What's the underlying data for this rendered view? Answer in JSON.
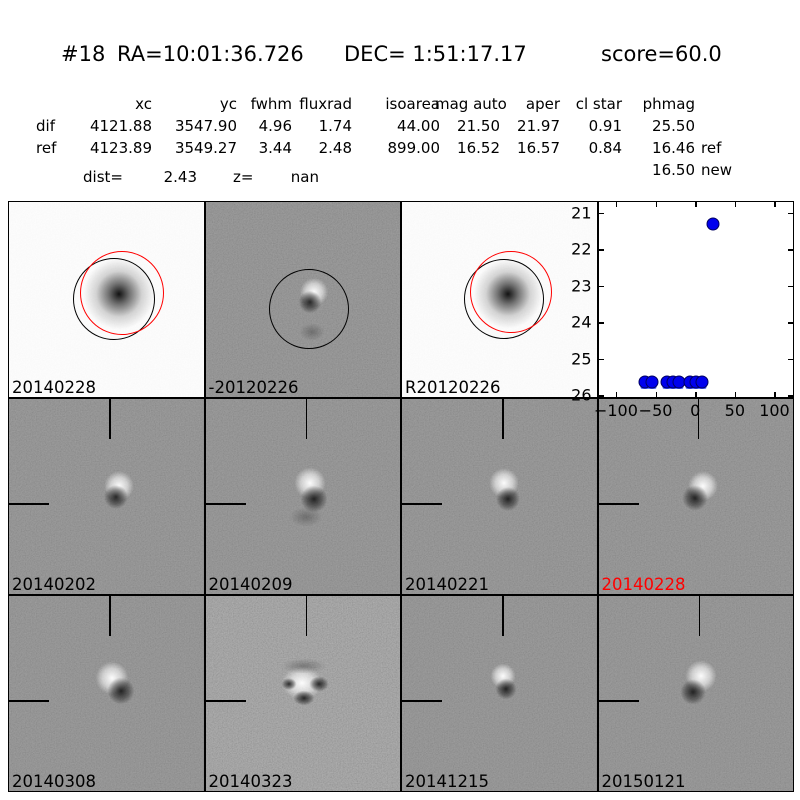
{
  "header": {
    "id": "#18",
    "ra": "RA=10:01:36.726",
    "dec": "DEC= 1:51:17.17",
    "score": "score=60.0"
  },
  "table": {
    "columns": [
      "",
      "xc",
      "yc",
      "fwhm",
      "fluxrad",
      "isoarea",
      "mag auto",
      "aper",
      "cl star",
      "phmag"
    ],
    "rows": [
      {
        "name": "dif",
        "values": [
          "4121.88",
          "3547.90",
          "4.96",
          "1.74",
          "44.00",
          "21.50",
          "21.97",
          "0.91",
          "25.50"
        ],
        "suffix": ""
      },
      {
        "name": "ref",
        "values": [
          "4123.89",
          "3549.27",
          "3.44",
          "2.48",
          "899.00",
          "16.52",
          "16.57",
          "0.84",
          "16.46"
        ],
        "suffix": "ref"
      }
    ],
    "extra": {
      "value": "16.50",
      "suffix": "new"
    },
    "dist_label": "dist=",
    "dist_value": "2.43",
    "z_label": "z=",
    "z_value": "nan"
  },
  "grid": {
    "row1": [
      {
        "label": "20140228",
        "label_color": "#000000"
      },
      {
        "label": "-20120226",
        "label_color": "#000000"
      },
      {
        "label": "R20120226",
        "label_color": "#000000"
      }
    ],
    "row2": [
      {
        "label": "20140202",
        "label_color": "#000000"
      },
      {
        "label": "20140209",
        "label_color": "#000000"
      },
      {
        "label": "20140221",
        "label_color": "#000000"
      },
      {
        "label": "20140228",
        "label_color": "#ff0000"
      }
    ],
    "row3": [
      {
        "label": "20140308",
        "label_color": "#000000"
      },
      {
        "label": "20140323",
        "label_color": "#000000"
      },
      {
        "label": "20141215",
        "label_color": "#000000"
      },
      {
        "label": "20150121",
        "label_color": "#000000"
      }
    ]
  },
  "colors": {
    "marker_blue": "#0000ee",
    "marker_under_blue": "#5566ff",
    "highlight_label_red": "#ff0000",
    "aperture_black": "#000000",
    "aperture_red": "#ff0000",
    "panel_gray": "#8a8a8a"
  },
  "chart_data": {
    "type": "scatter",
    "title": "",
    "xlabel": "",
    "ylabel": "",
    "legend": null,
    "grid_on": false,
    "xlim": [
      -122,
      124
    ],
    "ylim": [
      20.7,
      26.05
    ],
    "y_inverted": true,
    "xticks": [
      -100,
      -50,
      0,
      50,
      100
    ],
    "yticks": [
      21,
      22,
      23,
      24,
      25,
      26
    ],
    "points": [
      {
        "x": -63,
        "y": 25.65
      },
      {
        "x": -54,
        "y": 25.65
      },
      {
        "x": -36,
        "y": 25.65
      },
      {
        "x": -28,
        "y": 25.65
      },
      {
        "x": -21,
        "y": 25.65
      },
      {
        "x": -7,
        "y": 25.65
      },
      {
        "x": 1,
        "y": 25.65
      },
      {
        "x": 8,
        "y": 25.65
      },
      {
        "x": 22,
        "y": 21.3
      }
    ]
  }
}
